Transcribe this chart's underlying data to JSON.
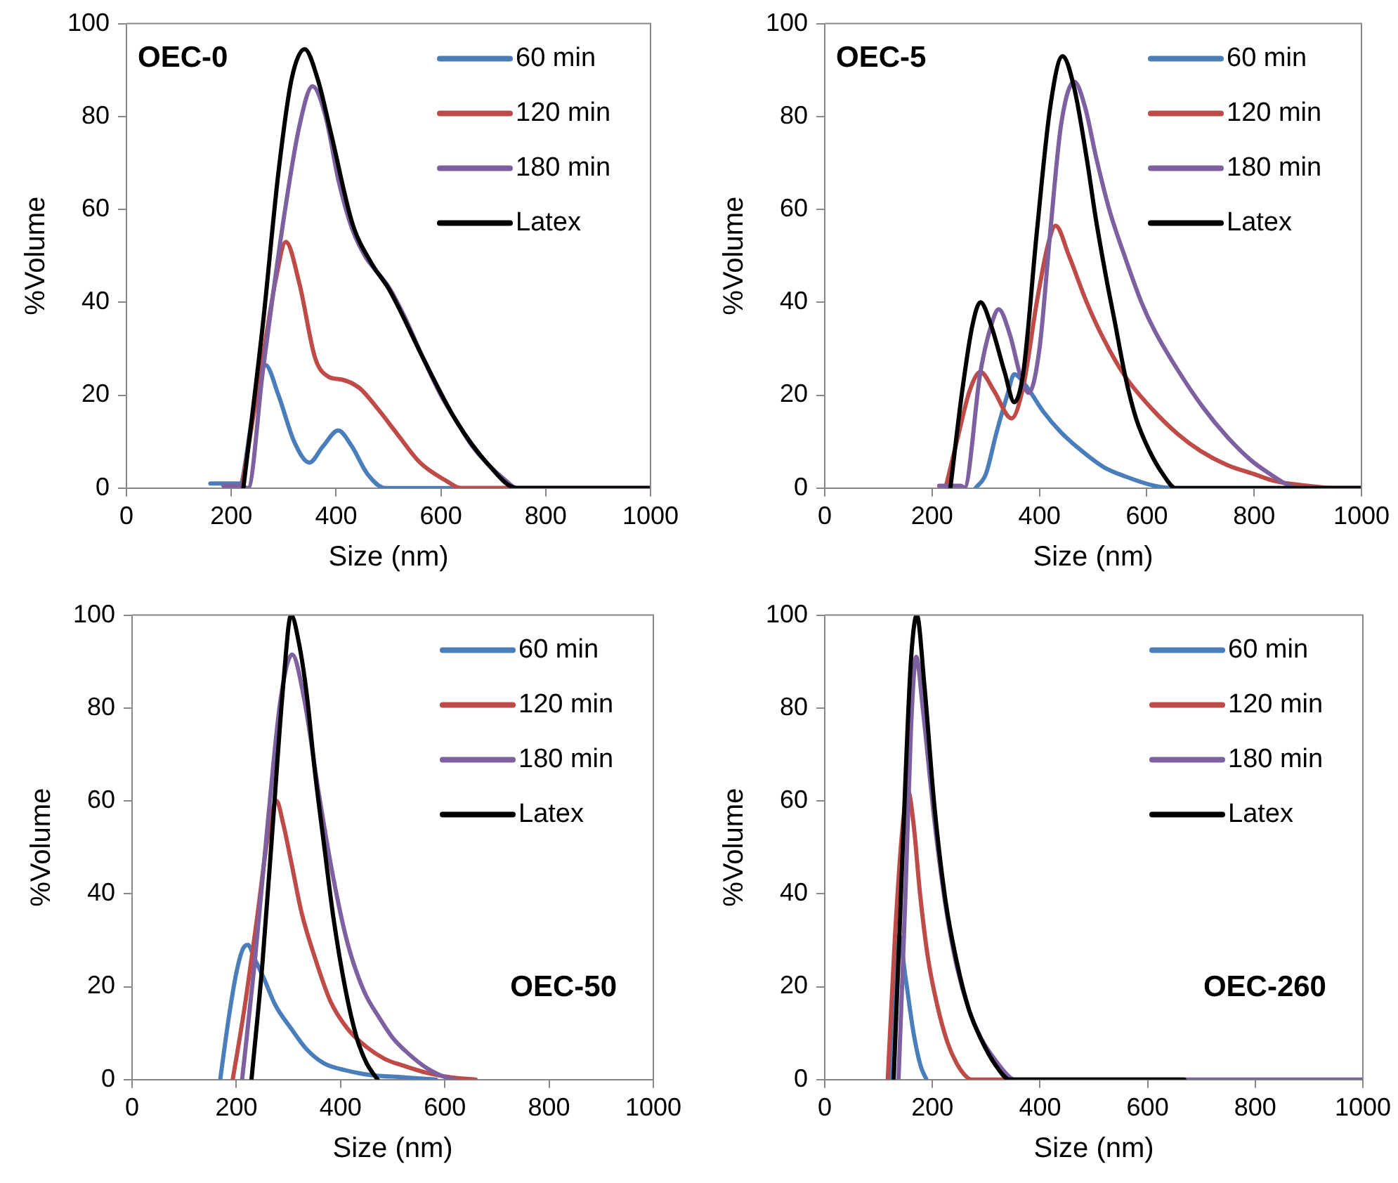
{
  "chart_data": [
    {
      "type": "line",
      "title": "OEC-0",
      "xlabel": "Size (nm)",
      "ylabel": "%Volume",
      "xlim": [
        0,
        1000
      ],
      "xticks": [
        0,
        200,
        400,
        600,
        800,
        1000
      ],
      "ylim": [
        0,
        100
      ],
      "yticks": [
        0,
        20,
        40,
        60,
        80,
        100
      ],
      "grid": false,
      "legend": "top right",
      "series": [
        {
          "name": "60 min",
          "color": "#4a7ebb",
          "x": [
            160,
            216,
            240,
            265,
            290,
            320,
            349,
            375,
            404,
            430,
            460,
            494,
            1000
          ],
          "values": [
            1,
            1,
            15,
            26.5,
            20,
            10,
            5.5,
            9,
            12.4,
            9,
            3,
            0,
            0
          ]
        },
        {
          "name": "120 min",
          "color": "#be4b48",
          "x": [
            220,
            260,
            285,
            304,
            330,
            360,
            385,
            413,
            445,
            480,
            521,
            560,
            611,
            638,
            1000
          ],
          "values": [
            0,
            28,
            45,
            53,
            44,
            28,
            24,
            23.3,
            21.5,
            17,
            11,
            5.5,
            1.5,
            0,
            0
          ]
        },
        {
          "name": "180 min",
          "color": "#7d60a0",
          "x": [
            185,
            216,
            232,
            260,
            300,
            330,
            355,
            380,
            405,
            430,
            455,
            471,
            502,
            530,
            566,
            600,
            629,
            660,
            691,
            720,
            745,
            1000
          ],
          "values": [
            0.5,
            0.5,
            0,
            25,
            58,
            78,
            86.5,
            80,
            66,
            56,
            50,
            47.5,
            43,
            37,
            28,
            20,
            14.5,
            9,
            5,
            2,
            0,
            0
          ]
        },
        {
          "name": "Latex",
          "color": "#000000",
          "x": [
            223,
            260,
            290,
            315,
            340,
            365,
            391,
            431,
            467,
            500,
            521,
            566,
            629,
            691,
            745,
            1000
          ],
          "values": [
            0,
            35,
            68,
            88,
            94.5,
            88,
            76,
            57,
            48.5,
            43,
            38.5,
            28,
            14.5,
            5,
            0,
            0
          ]
        }
      ]
    },
    {
      "type": "line",
      "title": "OEC-5",
      "xlabel": "Size (nm)",
      "ylabel": "%Volume",
      "xlim": [
        0,
        1000
      ],
      "xticks": [
        0,
        200,
        400,
        600,
        800,
        1000
      ],
      "ylim": [
        0,
        100
      ],
      "yticks": [
        0,
        20,
        40,
        60,
        80,
        100
      ],
      "grid": false,
      "legend": "top right",
      "series": [
        {
          "name": "60 min",
          "color": "#4a7ebb",
          "x": [
            281,
            300,
            320,
            340,
            353,
            375,
            407,
            440,
            479,
            520,
            560,
            614,
            650,
            1000
          ],
          "values": [
            0,
            3,
            12,
            20,
            24.5,
            22,
            16.5,
            12,
            8,
            4.5,
            2.5,
            0.5,
            0,
            0
          ]
        },
        {
          "name": "120 min",
          "color": "#be4b48",
          "x": [
            225,
            250,
            270,
            290,
            315,
            348,
            370,
            395,
            415,
            430,
            455,
            488,
            520,
            560,
            610,
            659,
            700,
            749,
            800,
            839,
            900,
            956,
            1000
          ],
          "values": [
            0,
            12,
            21,
            25,
            21,
            15,
            22,
            40,
            52,
            56.5,
            50,
            40,
            32,
            24,
            17,
            11.5,
            8,
            5,
            3,
            1.5,
            0.5,
            0,
            0
          ]
        },
        {
          "name": "180 min",
          "color": "#7d60a0",
          "x": [
            213,
            254,
            260,
            290,
            310,
            324,
            345,
            365,
            380,
            400,
            420,
            440,
            465,
            485,
            506,
            530,
            560,
            590,
            614,
            660,
            704,
            750,
            794,
            830,
            866,
            884,
            1000
          ],
          "values": [
            0.5,
            0.5,
            0,
            25,
            35,
            38.5,
            33,
            24,
            20.5,
            30,
            55,
            78,
            87.5,
            82,
            71,
            60,
            49.5,
            40,
            34,
            25,
            17.5,
            11,
            6,
            3,
            0.5,
            0,
            0
          ]
        },
        {
          "name": "Latex",
          "color": "#000000",
          "x": [
            234,
            255,
            275,
            290,
            310,
            335,
            353,
            370,
            395,
            420,
            443,
            465,
            488,
            505,
            524,
            540,
            560,
            580,
            605,
            630,
            654,
            1000
          ],
          "values": [
            0,
            20,
            35,
            40,
            35,
            25,
            18.5,
            25,
            55,
            82,
            93,
            86,
            71,
            58,
            45.5,
            36,
            24,
            15,
            8,
            3,
            0,
            0
          ]
        }
      ]
    },
    {
      "type": "line",
      "title": "OEC-50",
      "xlabel": "Size (nm)",
      "ylabel": "%Volume",
      "xlim": [
        0,
        1000
      ],
      "xticks": [
        0,
        200,
        400,
        600,
        800,
        1000
      ],
      "ylim": [
        0,
        100
      ],
      "yticks": [
        0,
        20,
        40,
        60,
        80,
        100
      ],
      "grid": false,
      "legend": "top right",
      "series": [
        {
          "name": "60 min",
          "color": "#4a7ebb",
          "x": [
            169,
            185,
            200,
            212,
            222,
            235,
            252,
            275,
            305,
            335,
            368,
            410,
            457,
            520,
            583
          ],
          "values": [
            0,
            13,
            23,
            28,
            29,
            26,
            22,
            16,
            11,
            6.5,
            3.5,
            2,
            1,
            0.5,
            0
          ]
        },
        {
          "name": "120 min",
          "color": "#be4b48",
          "x": [
            193,
            215,
            240,
            260,
            277,
            290,
            305,
            325,
            350,
            380,
            413,
            450,
            484,
            520,
            564,
            610,
            659
          ],
          "values": [
            0,
            15,
            35,
            52,
            60,
            55,
            47,
            36,
            26.5,
            17,
            11,
            7,
            4.5,
            3,
            1.5,
            0.5,
            0
          ]
        },
        {
          "name": "180 min",
          "color": "#7d60a0",
          "x": [
            211,
            235,
            260,
            285,
            307,
            330,
            359,
            385,
            413,
            445,
            476,
            500,
            529,
            565,
            601,
            619
          ],
          "values": [
            0,
            25,
            55,
            82,
            91.5,
            82,
            61,
            44,
            29.5,
            19,
            13,
            9,
            5.7,
            2.5,
            0.5,
            0
          ]
        },
        {
          "name": "Latex",
          "color": "#000000",
          "x": [
            229,
            250,
            270,
            290,
            305,
            320,
            335,
            350,
            370,
            386,
            410,
            431,
            450,
            471
          ],
          "values": [
            0,
            25,
            55,
            85,
            100,
            94,
            83,
            67,
            49,
            35,
            19,
            9,
            3.5,
            0
          ]
        }
      ]
    },
    {
      "type": "line",
      "title": "OEC-260",
      "xlabel": "Size (nm)",
      "ylabel": "%Volume",
      "xlim": [
        0,
        1000
      ],
      "xticks": [
        0,
        200,
        400,
        600,
        800,
        1000
      ],
      "ylim": [
        0,
        100
      ],
      "yticks": [
        0,
        20,
        40,
        60,
        80,
        100
      ],
      "grid": false,
      "legend": "top right",
      "series": [
        {
          "name": "60 min",
          "color": "#4a7ebb",
          "x": [
            121,
            130,
            138,
            150,
            165,
            178,
            189
          ],
          "values": [
            0,
            20,
            31,
            22,
            10,
            3,
            0
          ]
        },
        {
          "name": "120 min",
          "color": "#be4b48",
          "x": [
            117,
            130,
            145,
            155,
            165,
            177,
            192,
            209,
            228,
            245,
            260,
            272,
            350
          ],
          "values": [
            0,
            30,
            55,
            62,
            55,
            40,
            26,
            16,
            8,
            3.5,
            1,
            0,
            0
          ]
        },
        {
          "name": "180 min",
          "color": "#7d60a0",
          "x": [
            137,
            150,
            160,
            170,
            182,
            204,
            225,
            245,
            268,
            290,
            318,
            344,
            353,
            1000
          ],
          "values": [
            0,
            40,
            75,
            91,
            80,
            55.5,
            37,
            24.5,
            15,
            9,
            4,
            0.5,
            0,
            0
          ]
        },
        {
          "name": "Latex",
          "color": "#000000",
          "x": [
            128,
            140,
            150,
            160,
            171,
            185,
            204,
            225,
            245,
            268,
            290,
            318,
            344,
            668
          ],
          "values": [
            0,
            35,
            65,
            90,
            100,
            85,
            58.5,
            38,
            25.5,
            15,
            8.8,
            3,
            0,
            0
          ]
        }
      ]
    }
  ]
}
